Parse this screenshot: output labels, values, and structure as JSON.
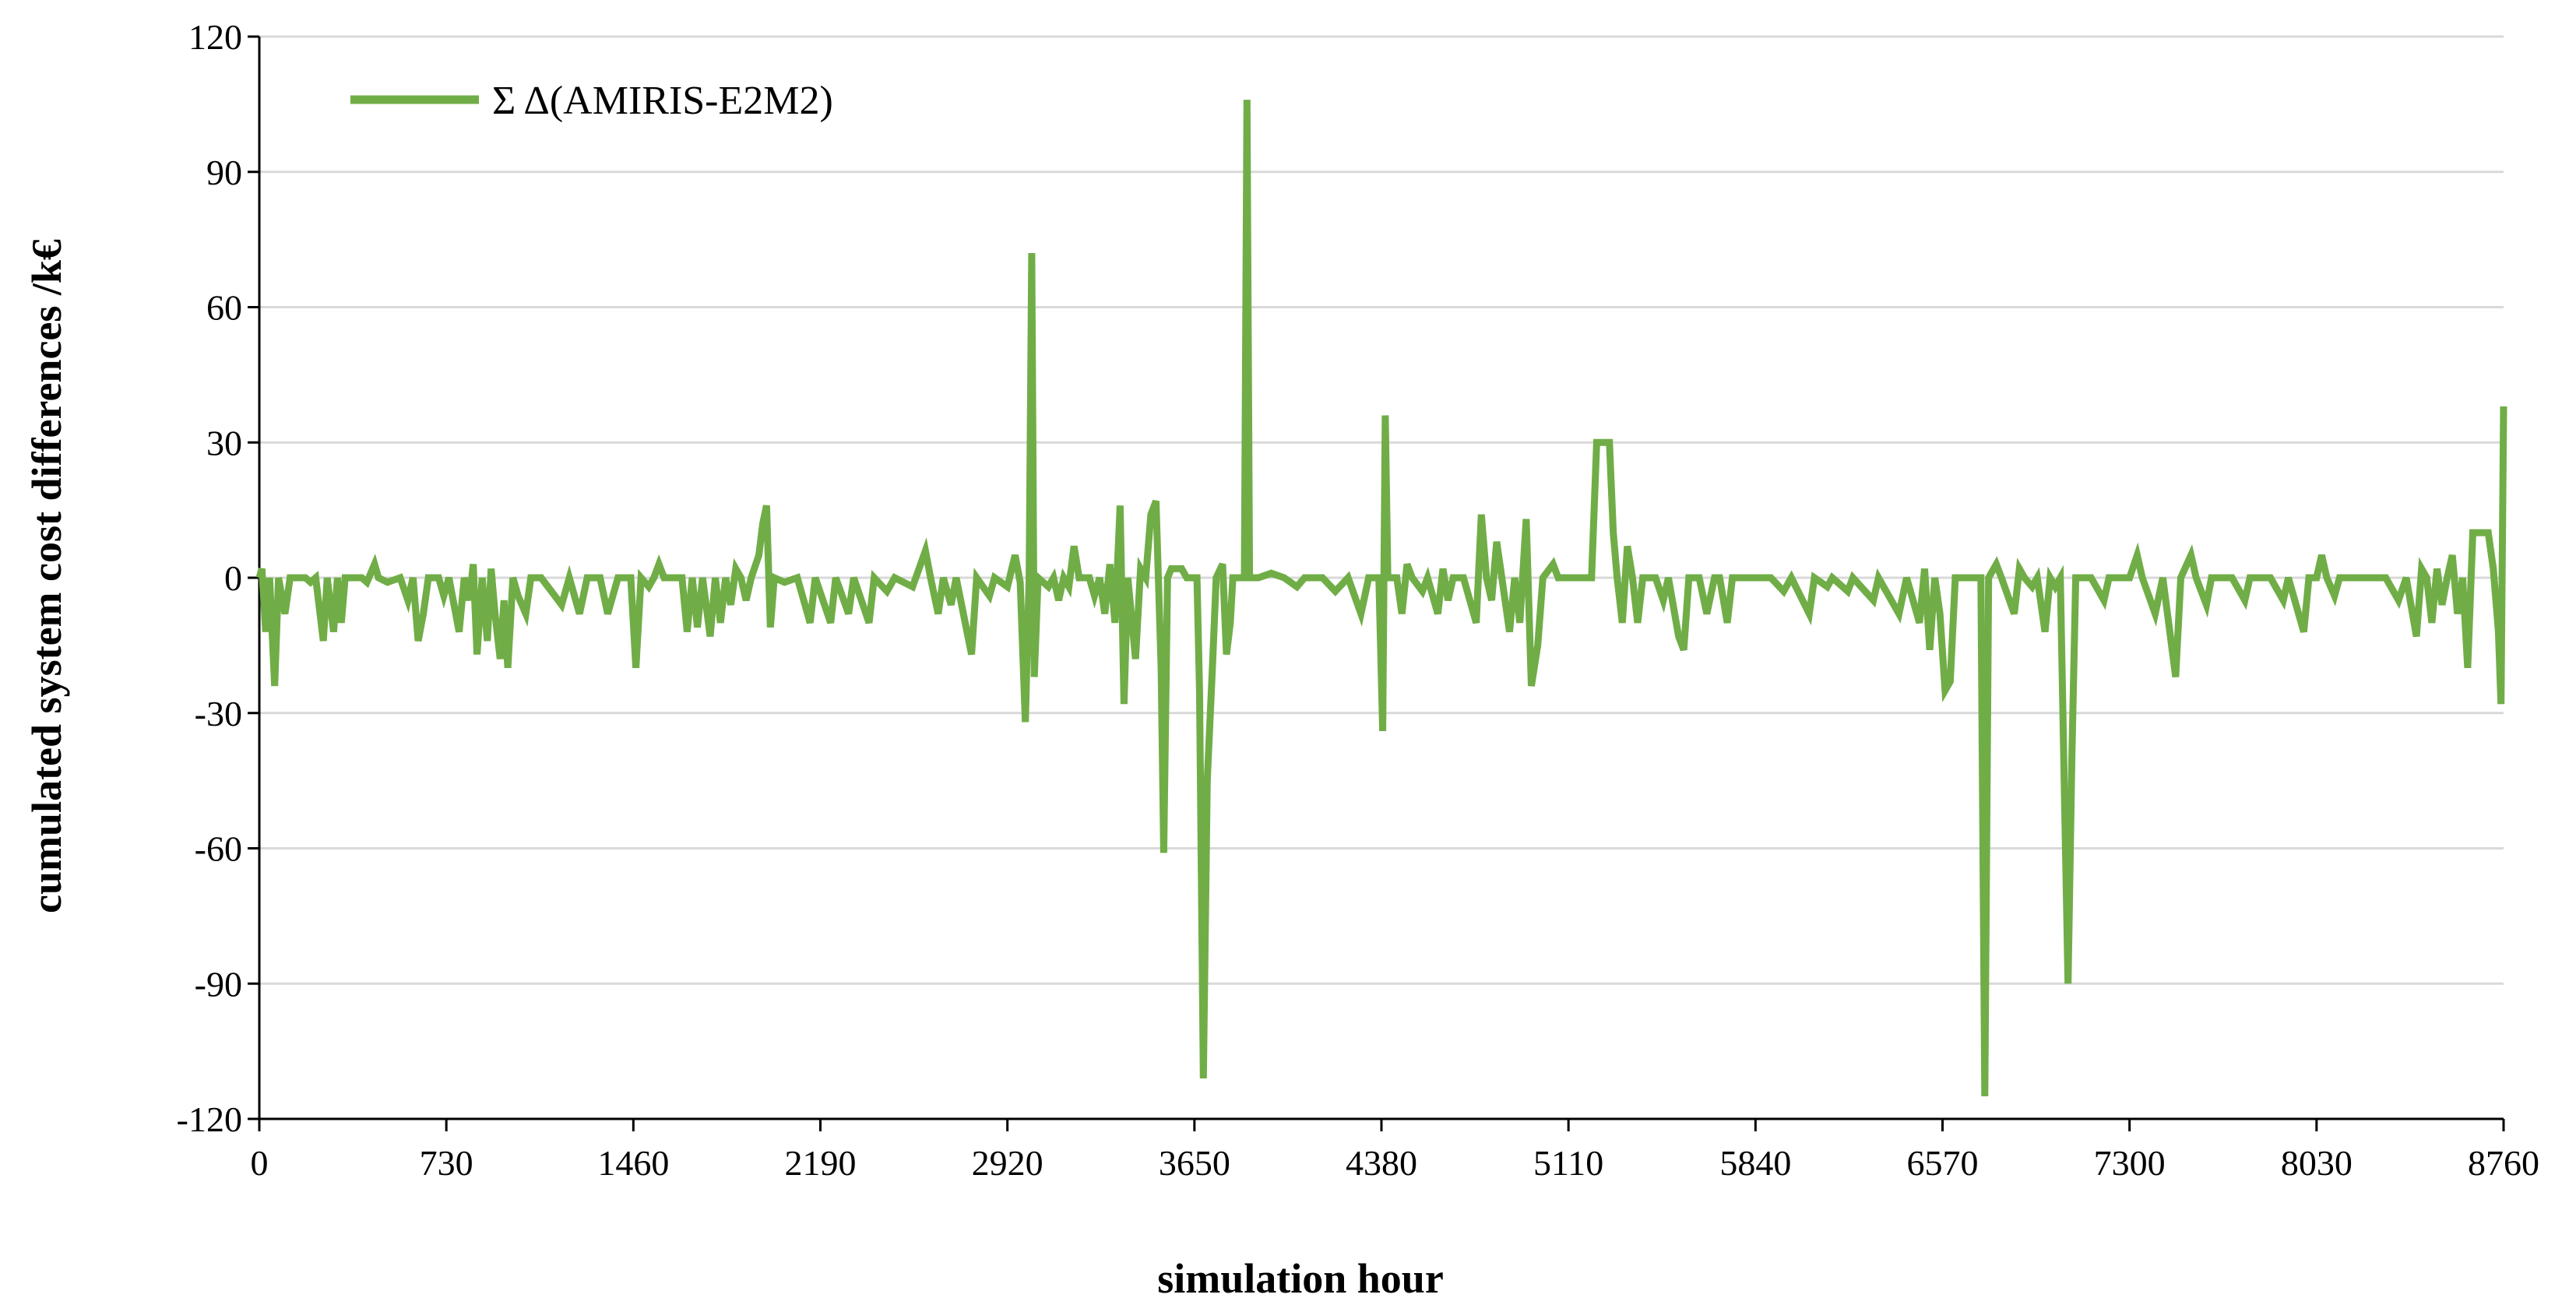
{
  "chart_data": {
    "type": "line",
    "title": "",
    "xlabel": "simulation  hour",
    "ylabel": "cumulated  system cost differences /k€",
    "xlim": [
      0,
      8760
    ],
    "ylim": [
      -120,
      120
    ],
    "xticks": [
      0,
      730,
      1460,
      2190,
      2920,
      3650,
      4380,
      5110,
      5840,
      6570,
      7300,
      8030,
      8760
    ],
    "yticks": [
      -120,
      -90,
      -60,
      -30,
      0,
      30,
      60,
      90,
      120
    ],
    "x_tick_labels": [
      "0",
      "730",
      "1460",
      "2190",
      "2920",
      "3650",
      "4380",
      "5110",
      "5840",
      "6570",
      "7300",
      "8030",
      "8760"
    ],
    "y_tick_labels": [
      "-120",
      "-90",
      "-60",
      "-30",
      "0",
      "30",
      "60",
      "90",
      "120"
    ],
    "grid": "horizontal",
    "legend": {
      "position": "top-left",
      "entries": [
        "Σ Δ(AMIRIS-E2M2)"
      ]
    },
    "series_color": "#70ad47",
    "series": [
      {
        "name": "Σ Δ(AMIRIS-E2M2)",
        "points": [
          [
            0,
            0
          ],
          [
            10,
            2
          ],
          [
            25,
            -12
          ],
          [
            40,
            0
          ],
          [
            60,
            -24
          ],
          [
            75,
            0
          ],
          [
            100,
            -8
          ],
          [
            120,
            0
          ],
          [
            180,
            0
          ],
          [
            200,
            -1
          ],
          [
            220,
            0
          ],
          [
            250,
            -14
          ],
          [
            265,
            0
          ],
          [
            290,
            -12
          ],
          [
            305,
            0
          ],
          [
            320,
            -10
          ],
          [
            335,
            0
          ],
          [
            400,
            0
          ],
          [
            420,
            -1
          ],
          [
            450,
            3
          ],
          [
            465,
            0
          ],
          [
            500,
            -1
          ],
          [
            550,
            0
          ],
          [
            580,
            -5
          ],
          [
            600,
            0
          ],
          [
            620,
            -14
          ],
          [
            640,
            -8
          ],
          [
            660,
            0
          ],
          [
            700,
            0
          ],
          [
            720,
            -4
          ],
          [
            740,
            0
          ],
          [
            780,
            -12
          ],
          [
            800,
            0
          ],
          [
            820,
            -5
          ],
          [
            835,
            3
          ],
          [
            850,
            -17
          ],
          [
            870,
            0
          ],
          [
            890,
            -14
          ],
          [
            905,
            2
          ],
          [
            920,
            -8
          ],
          [
            940,
            -18
          ],
          [
            955,
            -5
          ],
          [
            970,
            -20
          ],
          [
            990,
            0
          ],
          [
            1010,
            -4
          ],
          [
            1040,
            -8
          ],
          [
            1060,
            0
          ],
          [
            1100,
            0
          ],
          [
            1140,
            -3
          ],
          [
            1180,
            -6
          ],
          [
            1210,
            0
          ],
          [
            1250,
            -8
          ],
          [
            1280,
            0
          ],
          [
            1330,
            0
          ],
          [
            1360,
            -8
          ],
          [
            1400,
            0
          ],
          [
            1450,
            0
          ],
          [
            1470,
            -20
          ],
          [
            1490,
            0
          ],
          [
            1520,
            -2
          ],
          [
            1540,
            0
          ],
          [
            1560,
            3
          ],
          [
            1580,
            0
          ],
          [
            1650,
            0
          ],
          [
            1670,
            -12
          ],
          [
            1690,
            0
          ],
          [
            1710,
            -11
          ],
          [
            1730,
            0
          ],
          [
            1760,
            -13
          ],
          [
            1780,
            0
          ],
          [
            1800,
            -10
          ],
          [
            1820,
            0
          ],
          [
            1840,
            -6
          ],
          [
            1860,
            2
          ],
          [
            1880,
            0
          ],
          [
            1900,
            -5
          ],
          [
            1920,
            0
          ],
          [
            1950,
            5
          ],
          [
            1965,
            12
          ],
          [
            1980,
            16
          ],
          [
            1995,
            -11
          ],
          [
            2010,
            0
          ],
          [
            2050,
            -1
          ],
          [
            2100,
            0
          ],
          [
            2150,
            -10
          ],
          [
            2170,
            0
          ],
          [
            2230,
            -10
          ],
          [
            2250,
            0
          ],
          [
            2300,
            -8
          ],
          [
            2320,
            0
          ],
          [
            2380,
            -10
          ],
          [
            2400,
            0
          ],
          [
            2450,
            -3
          ],
          [
            2480,
            0
          ],
          [
            2550,
            -2
          ],
          [
            2600,
            6
          ],
          [
            2620,
            0
          ],
          [
            2650,
            -8
          ],
          [
            2670,
            0
          ],
          [
            2700,
            -6
          ],
          [
            2720,
            0
          ],
          [
            2780,
            -17
          ],
          [
            2800,
            0
          ],
          [
            2850,
            -4
          ],
          [
            2870,
            0
          ],
          [
            2920,
            -2
          ],
          [
            2950,
            5
          ],
          [
            2970,
            -1
          ],
          [
            2990,
            -32
          ],
          [
            3005,
            0
          ],
          [
            3015,
            72
          ],
          [
            3025,
            -22
          ],
          [
            3040,
            0
          ],
          [
            3080,
            -2
          ],
          [
            3100,
            0
          ],
          [
            3120,
            -5
          ],
          [
            3140,
            0
          ],
          [
            3160,
            -2
          ],
          [
            3180,
            7
          ],
          [
            3200,
            0
          ],
          [
            3240,
            0
          ],
          [
            3260,
            -4
          ],
          [
            3280,
            0
          ],
          [
            3300,
            -8
          ],
          [
            3320,
            3
          ],
          [
            3340,
            -10
          ],
          [
            3360,
            16
          ],
          [
            3375,
            -28
          ],
          [
            3390,
            0
          ],
          [
            3420,
            -18
          ],
          [
            3440,
            2
          ],
          [
            3460,
            0
          ],
          [
            3480,
            14
          ],
          [
            3500,
            17
          ],
          [
            3520,
            -20
          ],
          [
            3530,
            -61
          ],
          [
            3545,
            0
          ],
          [
            3560,
            2
          ],
          [
            3600,
            2
          ],
          [
            3620,
            0
          ],
          [
            3660,
            0
          ],
          [
            3670,
            -25
          ],
          [
            3685,
            -111
          ],
          [
            3700,
            -45
          ],
          [
            3720,
            -20
          ],
          [
            3735,
            0
          ],
          [
            3760,
            3
          ],
          [
            3775,
            -17
          ],
          [
            3790,
            -10
          ],
          [
            3800,
            0
          ],
          [
            3845,
            0
          ],
          [
            3855,
            106
          ],
          [
            3865,
            0
          ],
          [
            3900,
            0
          ],
          [
            3950,
            1
          ],
          [
            4000,
            0
          ],
          [
            4050,
            -2
          ],
          [
            4080,
            0
          ],
          [
            4150,
            0
          ],
          [
            4200,
            -3
          ],
          [
            4250,
            0
          ],
          [
            4300,
            -8
          ],
          [
            4330,
            0
          ],
          [
            4370,
            0
          ],
          [
            4385,
            -34
          ],
          [
            4395,
            36
          ],
          [
            4405,
            0
          ],
          [
            4440,
            0
          ],
          [
            4460,
            -8
          ],
          [
            4480,
            3
          ],
          [
            4500,
            0
          ],
          [
            4540,
            -3
          ],
          [
            4560,
            0
          ],
          [
            4600,
            -8
          ],
          [
            4620,
            2
          ],
          [
            4640,
            -5
          ],
          [
            4660,
            0
          ],
          [
            4700,
            0
          ],
          [
            4750,
            -10
          ],
          [
            4770,
            14
          ],
          [
            4790,
            0
          ],
          [
            4810,
            -5
          ],
          [
            4830,
            8
          ],
          [
            4850,
            0
          ],
          [
            4880,
            -12
          ],
          [
            4900,
            0
          ],
          [
            4920,
            -10
          ],
          [
            4945,
            13
          ],
          [
            4965,
            -24
          ],
          [
            4990,
            -15
          ],
          [
            5010,
            0
          ],
          [
            5050,
            3
          ],
          [
            5070,
            0
          ],
          [
            5150,
            0
          ],
          [
            5200,
            0
          ],
          [
            5220,
            30
          ],
          [
            5240,
            30
          ],
          [
            5255,
            30
          ],
          [
            5270,
            30
          ],
          [
            5285,
            10
          ],
          [
            5300,
            0
          ],
          [
            5320,
            -10
          ],
          [
            5340,
            7
          ],
          [
            5360,
            0
          ],
          [
            5380,
            -10
          ],
          [
            5400,
            0
          ],
          [
            5450,
            0
          ],
          [
            5480,
            -5
          ],
          [
            5500,
            0
          ],
          [
            5540,
            -13
          ],
          [
            5560,
            -16
          ],
          [
            5580,
            0
          ],
          [
            5620,
            0
          ],
          [
            5650,
            -8
          ],
          [
            5680,
            0
          ],
          [
            5700,
            0
          ],
          [
            5730,
            -10
          ],
          [
            5750,
            0
          ],
          [
            5800,
            0
          ],
          [
            5850,
            0
          ],
          [
            5900,
            0
          ],
          [
            5950,
            -3
          ],
          [
            5980,
            0
          ],
          [
            6050,
            -8
          ],
          [
            6070,
            0
          ],
          [
            6120,
            -2
          ],
          [
            6140,
            0
          ],
          [
            6200,
            -3
          ],
          [
            6220,
            0
          ],
          [
            6300,
            -5
          ],
          [
            6320,
            0
          ],
          [
            6400,
            -8
          ],
          [
            6430,
            0
          ],
          [
            6480,
            -10
          ],
          [
            6500,
            2
          ],
          [
            6520,
            -16
          ],
          [
            6540,
            0
          ],
          [
            6560,
            -8
          ],
          [
            6580,
            -25
          ],
          [
            6600,
            -23
          ],
          [
            6620,
            0
          ],
          [
            6680,
            0
          ],
          [
            6720,
            0
          ],
          [
            6735,
            -115
          ],
          [
            6750,
            0
          ],
          [
            6780,
            3
          ],
          [
            6800,
            0
          ],
          [
            6850,
            -8
          ],
          [
            6870,
            2
          ],
          [
            6890,
            0
          ],
          [
            6920,
            -2
          ],
          [
            6940,
            0
          ],
          [
            6970,
            -12
          ],
          [
            6990,
            0
          ],
          [
            7010,
            -2
          ],
          [
            7030,
            0
          ],
          [
            7060,
            -90
          ],
          [
            7075,
            -40
          ],
          [
            7090,
            0
          ],
          [
            7150,
            0
          ],
          [
            7200,
            -5
          ],
          [
            7220,
            0
          ],
          [
            7300,
            0
          ],
          [
            7330,
            5
          ],
          [
            7350,
            0
          ],
          [
            7400,
            -8
          ],
          [
            7430,
            0
          ],
          [
            7480,
            -22
          ],
          [
            7500,
            0
          ],
          [
            7540,
            5
          ],
          [
            7560,
            0
          ],
          [
            7600,
            -6
          ],
          [
            7620,
            0
          ],
          [
            7700,
            0
          ],
          [
            7750,
            -5
          ],
          [
            7770,
            0
          ],
          [
            7850,
            0
          ],
          [
            7900,
            -5
          ],
          [
            7920,
            0
          ],
          [
            7980,
            -12
          ],
          [
            8000,
            0
          ],
          [
            8030,
            0
          ],
          [
            8050,
            5
          ],
          [
            8070,
            0
          ],
          [
            8100,
            -4
          ],
          [
            8120,
            0
          ],
          [
            8200,
            0
          ],
          [
            8250,
            0
          ],
          [
            8300,
            0
          ],
          [
            8350,
            -5
          ],
          [
            8380,
            0
          ],
          [
            8420,
            -13
          ],
          [
            8440,
            2
          ],
          [
            8460,
            0
          ],
          [
            8480,
            -10
          ],
          [
            8500,
            2
          ],
          [
            8520,
            -6
          ],
          [
            8540,
            0
          ],
          [
            8560,
            5
          ],
          [
            8580,
            -8
          ],
          [
            8600,
            0
          ],
          [
            8620,
            -20
          ],
          [
            8640,
            10
          ],
          [
            8660,
            10
          ],
          [
            8680,
            10
          ],
          [
            8700,
            10
          ],
          [
            8720,
            2
          ],
          [
            8740,
            -12
          ],
          [
            8750,
            -28
          ],
          [
            8760,
            38
          ]
        ]
      }
    ]
  }
}
